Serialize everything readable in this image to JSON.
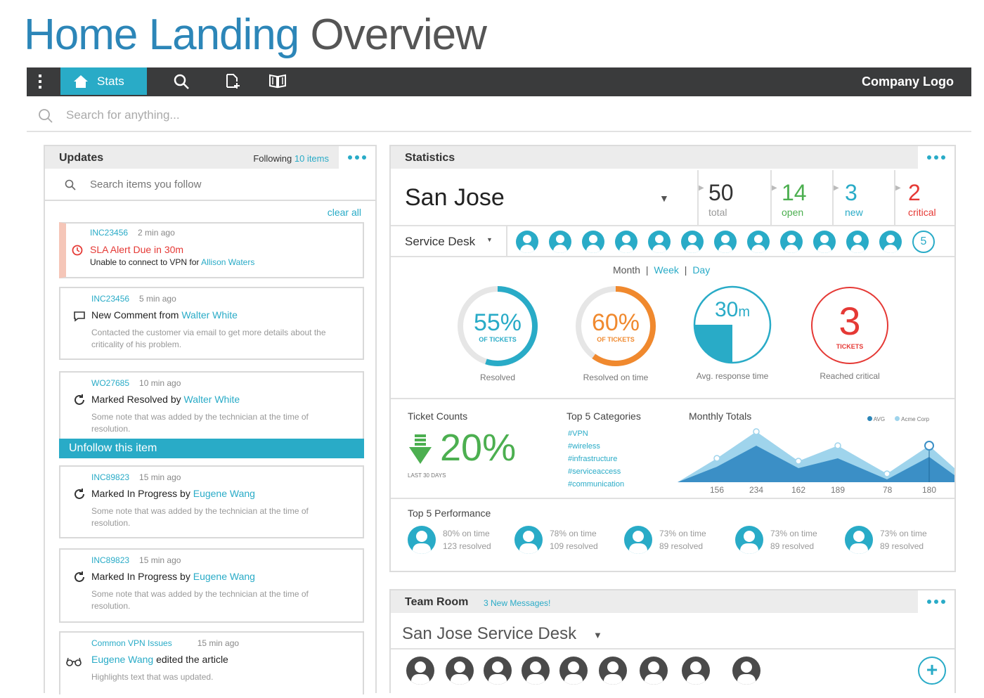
{
  "page": {
    "title_part1": "Home Landing",
    "title_part2": "Overview"
  },
  "navbar": {
    "stats_label": "Stats",
    "company_logo": "Company Logo"
  },
  "search": {
    "placeholder": "Search for anything..."
  },
  "updates": {
    "title": "Updates",
    "following_prefix": "Following",
    "following_count": "10 items",
    "search_placeholder": "Search items you follow",
    "clear_all": "clear all",
    "unfollow_label": "Unfollow this item",
    "items": [
      {
        "id": "INC23456",
        "time": "2 min ago",
        "icon": "alert-clock-icon",
        "head": "SLA Alert Due in 30m",
        "line2_prefix": "Unable to connect to VPN for",
        "line2_link": "Allison Waters"
      },
      {
        "id": "INC23456",
        "time": "5 min ago",
        "icon": "comment-icon",
        "head_prefix": "New Comment from",
        "head_link": "Walter White",
        "note": "Contacted the customer via email to get more details about the criticality of his problem."
      },
      {
        "id": "WO27685",
        "time": "10 min ago",
        "icon": "refresh-icon",
        "head_prefix": "Marked Resolved by",
        "head_link": "Walter White",
        "note": "Some note that was added by the technician at the time of resolution."
      },
      {
        "id": "INC89823",
        "time": "15 min ago",
        "icon": "refresh-icon",
        "head_prefix": "Marked In Progress by",
        "head_link": "Eugene Wang",
        "note": "Some note that was added by the technician at the time of resolution."
      },
      {
        "id": "INC89823",
        "time": "15 min ago",
        "icon": "refresh-icon",
        "head_prefix": "Marked In Progress by",
        "head_link": "Eugene Wang",
        "note": "Some note that was added by the technician at the time of resolution."
      },
      {
        "id": "Common VPN Issues",
        "time": "15 min ago",
        "icon": "glasses-icon",
        "head_link": "Eugene Wang",
        "head_suffix": "edited the article",
        "note": "Highlights text that was updated."
      }
    ]
  },
  "statistics": {
    "title": "Statistics",
    "location": "San Jose",
    "counts": [
      {
        "value": "50",
        "label": "total",
        "color": "#333333"
      },
      {
        "value": "14",
        "label": "open",
        "color": "#4caf50"
      },
      {
        "value": "3",
        "label": "new",
        "color": "#29abc7"
      },
      {
        "value": "2",
        "label": "critical",
        "color": "#e53935"
      }
    ],
    "desk": "Service Desk",
    "more_agents": "5",
    "period": {
      "month": "Month",
      "week": "Week",
      "day": "Day",
      "sep": "|"
    },
    "gauges": [
      {
        "value": "55%",
        "sub": "OF TICKETS",
        "label": "Resolved",
        "color": "#29abc7",
        "fraction": 0.55
      },
      {
        "value": "60%",
        "sub": "OF TICKETS",
        "label": "Resolved on time",
        "color": "#f0892e",
        "fraction": 0.6
      },
      {
        "value": "30",
        "unit": "m",
        "label": "Avg. response time",
        "color": "#29abc7",
        "fraction": 0.25
      },
      {
        "value": "3",
        "sub": "TICKETS",
        "label": "Reached critical",
        "color": "#e53935",
        "fraction": 1
      }
    ],
    "ticket_counts": {
      "title": "Ticket Counts",
      "value": "20%",
      "sub": "LAST 30 DAYS"
    },
    "top_categories": {
      "title": "Top 5 Categories",
      "items": [
        "#VPN",
        "#wireless",
        "#infrastructure",
        "#serviceaccess",
        "#communication"
      ]
    },
    "monthly_totals": {
      "title": "Monthly Totals",
      "legend_avg": "AVG",
      "legend_acme": "Acme Corp",
      "labels": [
        "156",
        "234",
        "162",
        "189",
        "78",
        "180"
      ]
    },
    "performance": {
      "title": "Top 5 Performance",
      "items": [
        {
          "line1": "80% on time",
          "line2": "123 resolved"
        },
        {
          "line1": "78% on time",
          "line2": "109 resolved"
        },
        {
          "line1": "73% on time",
          "line2": "89 resolved"
        },
        {
          "line1": "73% on time",
          "line2": "89 resolved"
        },
        {
          "line1": "73% on time",
          "line2": "89 resolved"
        }
      ]
    }
  },
  "team_room": {
    "title": "Team Room",
    "messages": "3 New Messages!",
    "desk": "San Jose Service Desk",
    "add": "+"
  },
  "colors": {
    "accent": "#29abc7",
    "navbar": "#3a3b3c",
    "title_blue": "#2c86b8",
    "alert": "#e53935",
    "orange": "#f0892e",
    "green": "#4caf50"
  }
}
